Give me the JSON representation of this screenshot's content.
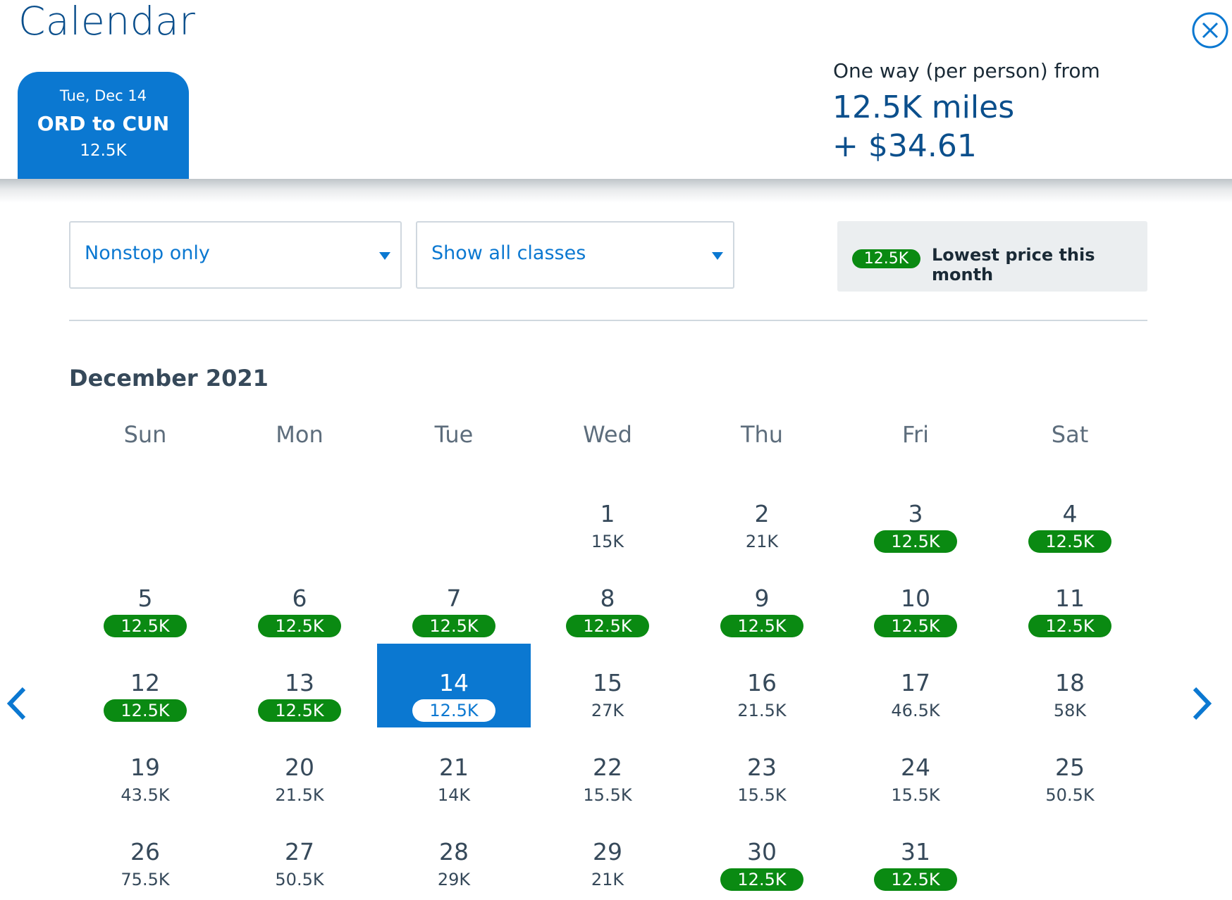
{
  "header": {
    "title": "Calendar",
    "close_icon": "close-circle-icon",
    "flight_tab": {
      "date": "Tue, Dec 14",
      "route": "ORD to CUN",
      "price": "12.5K"
    },
    "fare": {
      "caption": "One way (per person) from",
      "miles": "12.5K miles",
      "cash": "+ $34.61"
    }
  },
  "filters": {
    "stops": {
      "value": "Nonstop only"
    },
    "cabin": {
      "value": "Show all classes"
    }
  },
  "legend": {
    "pill": "12.5K",
    "text": "Lowest price this month"
  },
  "calendar": {
    "month_label": "December 2021",
    "weekdays": [
      "Sun",
      "Mon",
      "Tue",
      "Wed",
      "Thu",
      "Fri",
      "Sat"
    ],
    "selected_day": 14,
    "first_weekday_index": 3,
    "days": [
      {
        "day": "1",
        "price": "15K",
        "lowest": false
      },
      {
        "day": "2",
        "price": "21K",
        "lowest": false
      },
      {
        "day": "3",
        "price": "12.5K",
        "lowest": true
      },
      {
        "day": "4",
        "price": "12.5K",
        "lowest": true
      },
      {
        "day": "5",
        "price": "12.5K",
        "lowest": true
      },
      {
        "day": "6",
        "price": "12.5K",
        "lowest": true
      },
      {
        "day": "7",
        "price": "12.5K",
        "lowest": true
      },
      {
        "day": "8",
        "price": "12.5K",
        "lowest": true
      },
      {
        "day": "9",
        "price": "12.5K",
        "lowest": true
      },
      {
        "day": "10",
        "price": "12.5K",
        "lowest": true
      },
      {
        "day": "11",
        "price": "12.5K",
        "lowest": true
      },
      {
        "day": "12",
        "price": "12.5K",
        "lowest": true
      },
      {
        "day": "13",
        "price": "12.5K",
        "lowest": true
      },
      {
        "day": "14",
        "price": "12.5K",
        "lowest": true
      },
      {
        "day": "15",
        "price": "27K",
        "lowest": false
      },
      {
        "day": "16",
        "price": "21.5K",
        "lowest": false
      },
      {
        "day": "17",
        "price": "46.5K",
        "lowest": false
      },
      {
        "day": "18",
        "price": "58K",
        "lowest": false
      },
      {
        "day": "19",
        "price": "43.5K",
        "lowest": false
      },
      {
        "day": "20",
        "price": "21.5K",
        "lowest": false
      },
      {
        "day": "21",
        "price": "14K",
        "lowest": false
      },
      {
        "day": "22",
        "price": "15.5K",
        "lowest": false
      },
      {
        "day": "23",
        "price": "15.5K",
        "lowest": false
      },
      {
        "day": "24",
        "price": "15.5K",
        "lowest": false
      },
      {
        "day": "25",
        "price": "50.5K",
        "lowest": false
      },
      {
        "day": "26",
        "price": "75.5K",
        "lowest": false
      },
      {
        "day": "27",
        "price": "50.5K",
        "lowest": false
      },
      {
        "day": "28",
        "price": "29K",
        "lowest": false
      },
      {
        "day": "29",
        "price": "21K",
        "lowest": false
      },
      {
        "day": "30",
        "price": "12.5K",
        "lowest": true
      },
      {
        "day": "31",
        "price": "12.5K",
        "lowest": true
      }
    ]
  },
  "navigation": {
    "prev_icon": "chevron-left-icon",
    "next_icon": "chevron-right-icon"
  },
  "colors": {
    "brand_blue": "#0b78d1",
    "title_blue": "#0b4f8c",
    "lowest_green": "#0a8a12"
  }
}
